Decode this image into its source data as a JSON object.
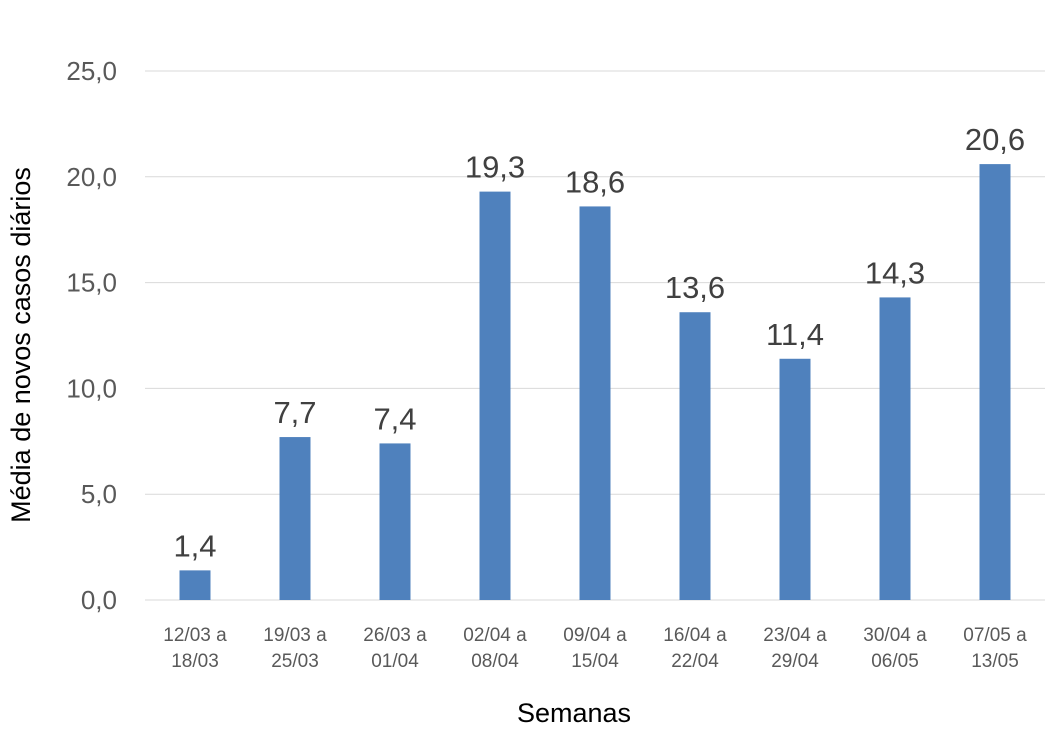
{
  "chart_data": {
    "type": "bar",
    "categories": [
      "12/03 a 18/03",
      "19/03 a 25/03",
      "26/03 a 01/04",
      "02/04 a 08/04",
      "09/04 a 15/04",
      "16/04 a 22/04",
      "23/04 a 29/04",
      "30/04 a 06/05",
      "07/05 a 13/05"
    ],
    "category_lines": [
      [
        "12/03 a",
        "18/03"
      ],
      [
        "19/03 a",
        "25/03"
      ],
      [
        "26/03 a",
        "01/04"
      ],
      [
        "02/04 a",
        "08/04"
      ],
      [
        "09/04 a",
        "15/04"
      ],
      [
        "16/04 a",
        "22/04"
      ],
      [
        "23/04 a",
        "29/04"
      ],
      [
        "30/04 a",
        "06/05"
      ],
      [
        "07/05 a",
        "13/05"
      ]
    ],
    "values": [
      1.4,
      7.7,
      7.4,
      19.3,
      18.6,
      13.6,
      11.4,
      14.3,
      20.6
    ],
    "data_labels": [
      "1,4",
      "7,7",
      "7,4",
      "19,3",
      "18,6",
      "13,6",
      "11,4",
      "14,3",
      "20,6"
    ],
    "yticks": [
      0,
      5,
      10,
      15,
      20,
      25
    ],
    "ytick_labels": [
      "0,0",
      "5,0",
      "10,0",
      "15,0",
      "20,0",
      "25,0"
    ],
    "ylim": [
      0,
      25
    ],
    "xlabel": "Semanas",
    "ylabel": "Média de novos casos diários",
    "grid": true,
    "bar_color": "#4f81bd",
    "grid_color": "#d9d9d9"
  }
}
